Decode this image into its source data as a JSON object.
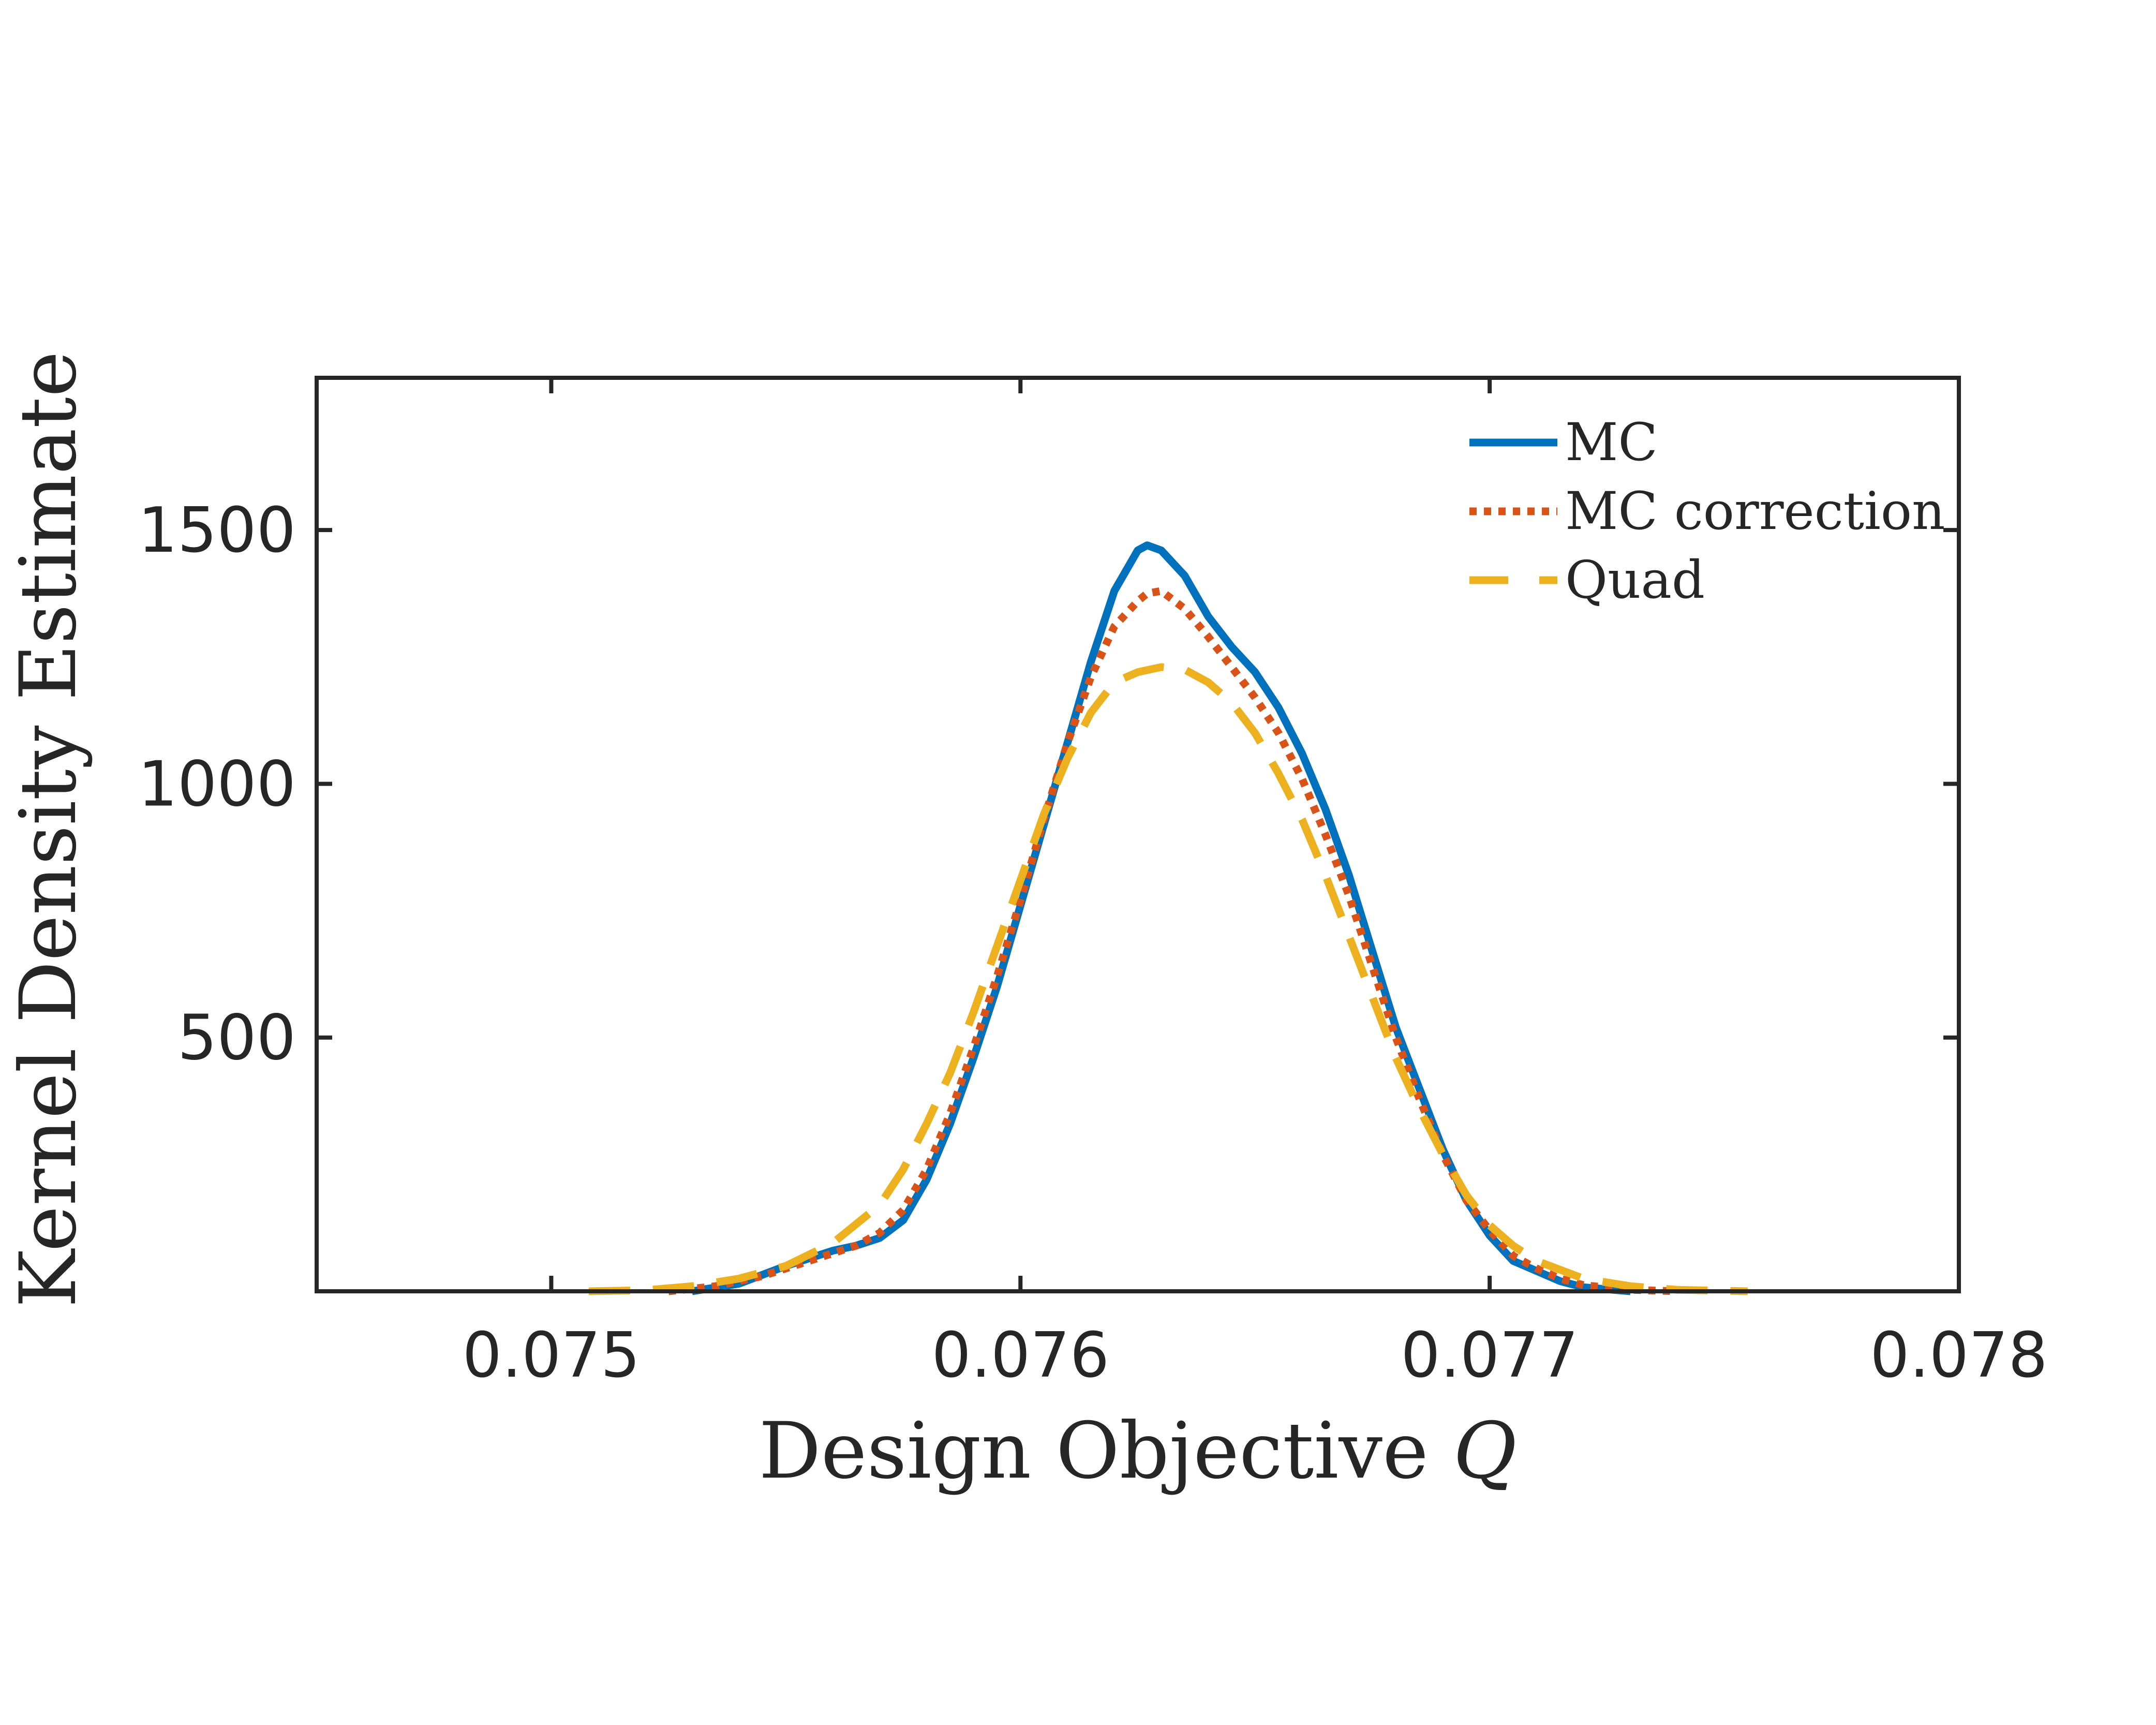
{
  "chart_data": {
    "type": "line",
    "title": "",
    "xlabel": "Design Objective",
    "xlabel_var": "Q",
    "ylabel": "Kernel Density Estimate",
    "xlim": [
      0.0745,
      0.078
    ],
    "ylim": [
      0,
      1800
    ],
    "xticks": [
      0.075,
      0.076,
      0.077,
      0.078
    ],
    "xtick_labels": [
      "0.075",
      "0.076",
      "0.077",
      "0.078"
    ],
    "yticks": [
      500,
      1000,
      1500
    ],
    "ytick_labels": [
      "500",
      "1000",
      "1500"
    ],
    "grid": false,
    "legend_position": "top-right",
    "series": [
      {
        "name": "MC",
        "style": "solid",
        "color": "#0072BD",
        "points": [
          [
            0.0753,
            0
          ],
          [
            0.0754,
            15
          ],
          [
            0.0755,
            50
          ],
          [
            0.07555,
            65
          ],
          [
            0.0756,
            80
          ],
          [
            0.07565,
            90
          ],
          [
            0.0757,
            105
          ],
          [
            0.07575,
            140
          ],
          [
            0.0758,
            220
          ],
          [
            0.07585,
            330
          ],
          [
            0.0759,
            460
          ],
          [
            0.07595,
            600
          ],
          [
            0.076,
            760
          ],
          [
            0.07605,
            920
          ],
          [
            0.0761,
            1080
          ],
          [
            0.07615,
            1240
          ],
          [
            0.0762,
            1380
          ],
          [
            0.07625,
            1460
          ],
          [
            0.07627,
            1470
          ],
          [
            0.0763,
            1460
          ],
          [
            0.07635,
            1410
          ],
          [
            0.0764,
            1330
          ],
          [
            0.07645,
            1270
          ],
          [
            0.0765,
            1220
          ],
          [
            0.07655,
            1150
          ],
          [
            0.0766,
            1060
          ],
          [
            0.07665,
            950
          ],
          [
            0.0767,
            820
          ],
          [
            0.07675,
            670
          ],
          [
            0.0768,
            520
          ],
          [
            0.07685,
            400
          ],
          [
            0.0769,
            280
          ],
          [
            0.07695,
            180
          ],
          [
            0.077,
            110
          ],
          [
            0.07705,
            60
          ],
          [
            0.0771,
            40
          ],
          [
            0.07715,
            20
          ],
          [
            0.0772,
            8
          ],
          [
            0.0773,
            0
          ]
        ]
      },
      {
        "name": "MC correction",
        "style": "dotted",
        "color": "#D95319",
        "points": [
          [
            0.07525,
            0
          ],
          [
            0.07535,
            10
          ],
          [
            0.07545,
            30
          ],
          [
            0.07555,
            60
          ],
          [
            0.07565,
            90
          ],
          [
            0.0757,
            115
          ],
          [
            0.07575,
            160
          ],
          [
            0.0758,
            240
          ],
          [
            0.07585,
            350
          ],
          [
            0.0759,
            480
          ],
          [
            0.07595,
            620
          ],
          [
            0.076,
            770
          ],
          [
            0.07605,
            930
          ],
          [
            0.0761,
            1080
          ],
          [
            0.07615,
            1210
          ],
          [
            0.0762,
            1310
          ],
          [
            0.07625,
            1360
          ],
          [
            0.07627,
            1375
          ],
          [
            0.0763,
            1380
          ],
          [
            0.07635,
            1345
          ],
          [
            0.0764,
            1290
          ],
          [
            0.07645,
            1230
          ],
          [
            0.0765,
            1170
          ],
          [
            0.07655,
            1100
          ],
          [
            0.0766,
            1010
          ],
          [
            0.07665,
            900
          ],
          [
            0.0767,
            780
          ],
          [
            0.07675,
            640
          ],
          [
            0.0768,
            500
          ],
          [
            0.07685,
            380
          ],
          [
            0.0769,
            270
          ],
          [
            0.07695,
            180
          ],
          [
            0.077,
            120
          ],
          [
            0.07705,
            70
          ],
          [
            0.0771,
            45
          ],
          [
            0.07715,
            25
          ],
          [
            0.0772,
            12
          ],
          [
            0.0773,
            3
          ],
          [
            0.0774,
            0
          ]
        ]
      },
      {
        "name": "Quad",
        "style": "dashed",
        "color": "#EDB120",
        "points": [
          [
            0.07508,
            0
          ],
          [
            0.0752,
            2
          ],
          [
            0.0753,
            10
          ],
          [
            0.0754,
            25
          ],
          [
            0.0755,
            50
          ],
          [
            0.0756,
            95
          ],
          [
            0.0757,
            170
          ],
          [
            0.07575,
            240
          ],
          [
            0.0758,
            330
          ],
          [
            0.07585,
            430
          ],
          [
            0.0759,
            550
          ],
          [
            0.07595,
            680
          ],
          [
            0.076,
            810
          ],
          [
            0.07605,
            940
          ],
          [
            0.0761,
            1050
          ],
          [
            0.07615,
            1140
          ],
          [
            0.0762,
            1200
          ],
          [
            0.07625,
            1220
          ],
          [
            0.0763,
            1230
          ],
          [
            0.07635,
            1225
          ],
          [
            0.0764,
            1200
          ],
          [
            0.07645,
            1160
          ],
          [
            0.0765,
            1100
          ],
          [
            0.07655,
            1020
          ],
          [
            0.0766,
            930
          ],
          [
            0.07665,
            820
          ],
          [
            0.0767,
            700
          ],
          [
            0.07675,
            580
          ],
          [
            0.0768,
            460
          ],
          [
            0.07685,
            360
          ],
          [
            0.0769,
            270
          ],
          [
            0.07695,
            190
          ],
          [
            0.077,
            130
          ],
          [
            0.07705,
            90
          ],
          [
            0.0771,
            60
          ],
          [
            0.0772,
            25
          ],
          [
            0.0773,
            10
          ],
          [
            0.0774,
            3
          ],
          [
            0.07755,
            0
          ]
        ]
      }
    ]
  }
}
